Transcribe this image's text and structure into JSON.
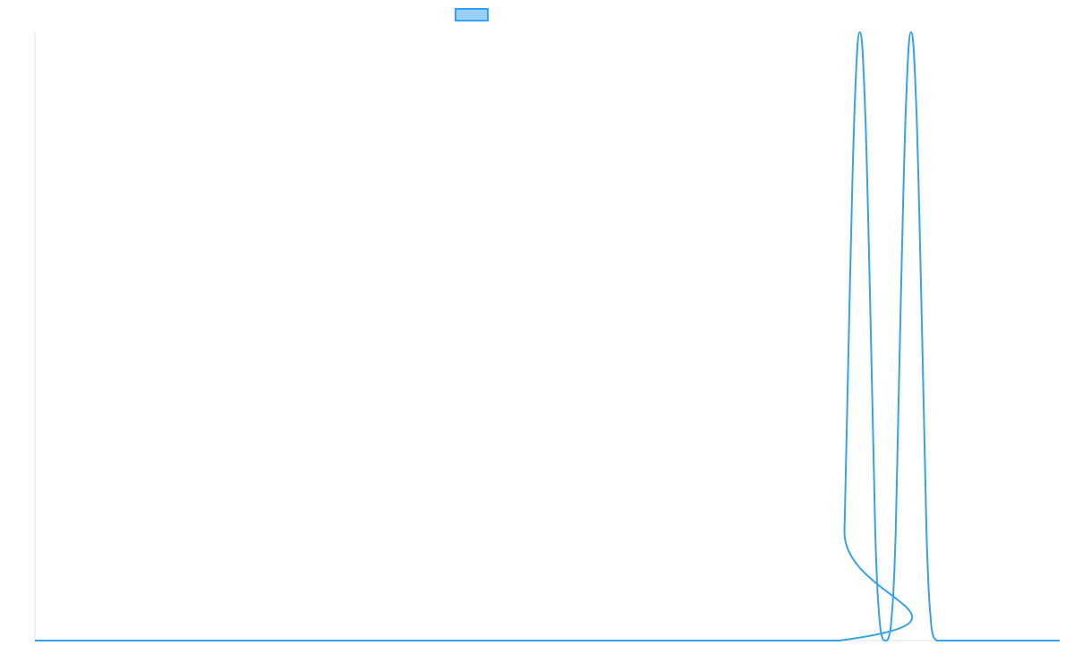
{
  "chart_data": {
    "type": "line",
    "title": "",
    "xlabel": "",
    "ylabel": "",
    "grid": false,
    "legend_position": "top",
    "colors": {
      "series": "#36a2eb",
      "axis": "#e0e0e0"
    },
    "xlim": [
      0,
      100
    ],
    "ylim": [
      0,
      1
    ],
    "series": [
      {
        "name": "",
        "x": [
          0,
          78.5,
          79.0,
          79.5,
          80.0,
          80.5,
          81.0,
          81.5,
          82.0,
          82.5,
          83.0,
          83.5,
          84.0,
          84.5,
          85.0,
          85.5,
          86.0,
          86.5,
          87.0,
          87.5,
          88.0,
          88.5,
          89.0,
          89.5,
          100
        ],
        "values": [
          0,
          0,
          0.18,
          0.56,
          0.88,
          1.0,
          0.88,
          0.56,
          0.18,
          0.02,
          0.0,
          0.02,
          0.18,
          0.56,
          0.88,
          1.0,
          0.88,
          0.56,
          0.18,
          0.02,
          0.0,
          0,
          0,
          0,
          0
        ]
      }
    ]
  }
}
